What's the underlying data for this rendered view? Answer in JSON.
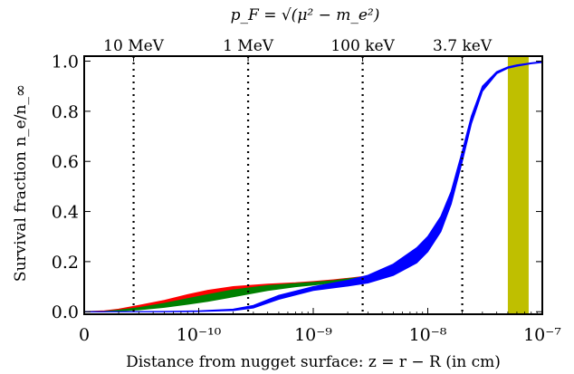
{
  "chart_data": {
    "type": "area",
    "title": "p_F = √(μ² − m_e²)",
    "xlabel": "Distance from nugget surface: z = r − R (in cm)",
    "ylabel": "Survival fraction n_e/n_∞",
    "xscale": "log",
    "xlim": [
      1e-11,
      1e-07
    ],
    "ylim": [
      -0.01,
      1.02
    ],
    "grid": false,
    "x_ticks": [
      {
        "value": 1e-11,
        "label": "0"
      },
      {
        "value": 1e-10,
        "label": "10⁻¹⁰"
      },
      {
        "value": 1e-09,
        "label": "10⁻⁹"
      },
      {
        "value": 1e-08,
        "label": "10⁻⁸"
      },
      {
        "value": 1e-07,
        "label": "10⁻⁷"
      }
    ],
    "y_ticks": [
      {
        "value": 0.0,
        "label": "0.0"
      },
      {
        "value": 0.2,
        "label": "0.2"
      },
      {
        "value": 0.4,
        "label": "0.4"
      },
      {
        "value": 0.6,
        "label": "0.6"
      },
      {
        "value": 0.8,
        "label": "0.8"
      },
      {
        "value": 1.0,
        "label": "1.0"
      }
    ],
    "top_axis_marks": [
      {
        "x": 2.7e-11,
        "label": "10 MeV"
      },
      {
        "x": 2.7e-10,
        "label": "1 MeV"
      },
      {
        "x": 2.7e-09,
        "label": "100 keV"
      },
      {
        "x": 2e-08,
        "label": "3.7 keV"
      }
    ],
    "highlight_band": {
      "x": [
        5e-08,
        7.6e-08
      ],
      "color": "#bfbf00"
    },
    "series": [
      {
        "color": "#ff0000",
        "x": [
          1e-11,
          1.5e-11,
          2e-11,
          3e-11,
          5e-11,
          8e-11,
          1.2e-10,
          2e-10,
          4e-10,
          7e-10,
          1e-09,
          1.5e-09,
          2e-09,
          2.7e-09
        ],
        "lower": [
          0.0,
          0.0,
          0.005,
          0.012,
          0.025,
          0.04,
          0.055,
          0.075,
          0.095,
          0.105,
          0.11,
          0.118,
          0.126,
          0.135
        ],
        "upper": [
          0.0,
          0.003,
          0.01,
          0.025,
          0.045,
          0.068,
          0.085,
          0.1,
          0.11,
          0.115,
          0.12,
          0.127,
          0.133,
          0.14
        ]
      },
      {
        "color": "#008000",
        "x": [
          1e-11,
          1.5e-11,
          2e-11,
          3e-11,
          5e-11,
          8e-11,
          1.2e-10,
          2e-10,
          4e-10,
          7e-10,
          1e-09,
          1.5e-09,
          2e-09,
          2.7e-09
        ],
        "lower": [
          0.0,
          0.0,
          0.003,
          0.008,
          0.018,
          0.03,
          0.042,
          0.06,
          0.085,
          0.1,
          0.107,
          0.116,
          0.124,
          0.133
        ],
        "upper": [
          0.0,
          0.001,
          0.006,
          0.016,
          0.033,
          0.052,
          0.068,
          0.087,
          0.104,
          0.112,
          0.117,
          0.124,
          0.131,
          0.138
        ]
      },
      {
        "color": "#0000ff",
        "x": [
          1e-11,
          2e-11,
          5e-11,
          1e-10,
          2e-10,
          3e-10,
          5e-10,
          1e-09,
          2e-09,
          3e-09,
          5e-09,
          8e-09,
          1e-08,
          1.3e-08,
          1.6e-08,
          2e-08,
          2.4e-08,
          3e-08,
          4e-08,
          5e-08,
          6e-08,
          8e-08,
          1e-07
        ],
        "lower": [
          0.0,
          0.0,
          0.0,
          0.001,
          0.005,
          0.015,
          0.05,
          0.085,
          0.103,
          0.115,
          0.145,
          0.195,
          0.24,
          0.32,
          0.43,
          0.6,
          0.75,
          0.88,
          0.95,
          0.972,
          0.98,
          0.99,
          0.995
        ],
        "upper": [
          0.0,
          0.0,
          0.001,
          0.003,
          0.01,
          0.025,
          0.065,
          0.1,
          0.125,
          0.145,
          0.19,
          0.255,
          0.3,
          0.38,
          0.48,
          0.64,
          0.78,
          0.9,
          0.958,
          0.977,
          0.985,
          0.993,
          0.998
        ]
      }
    ]
  }
}
